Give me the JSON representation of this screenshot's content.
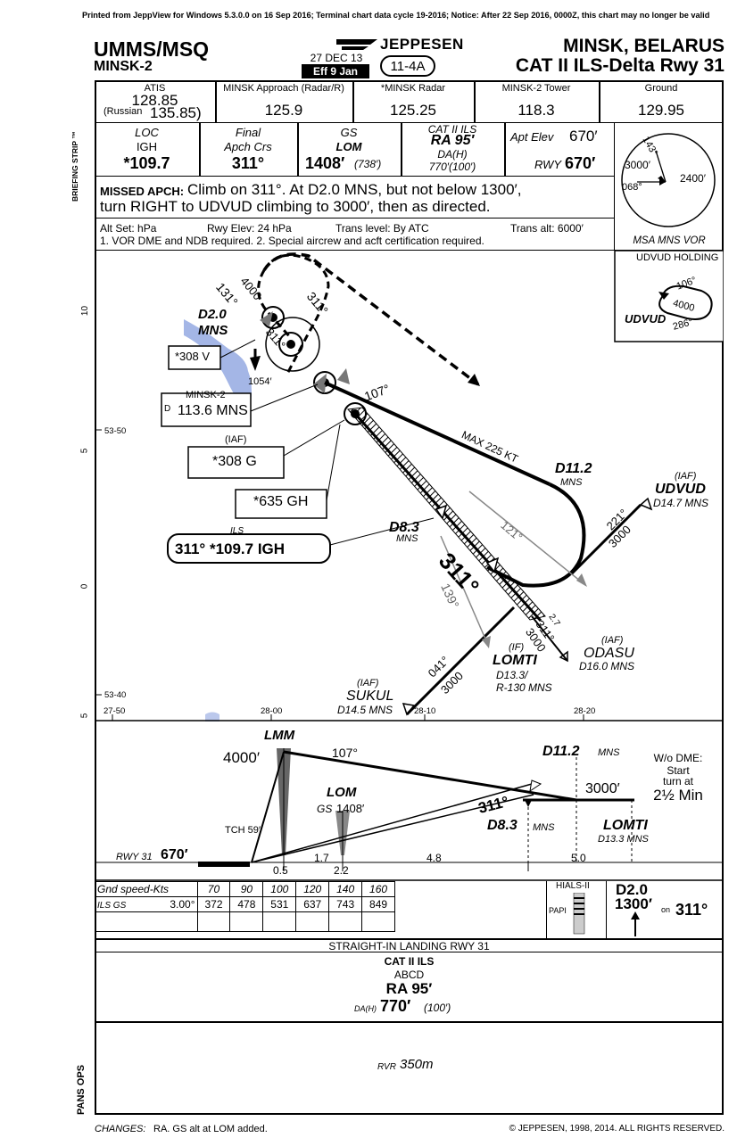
{
  "print_notice": "Printed from JeppView for Windows 5.3.0.0 on 16 Sep 2016; Terminal chart data cycle 19-2016; Notice: After 22 Sep 2016, 0000Z, this chart may no longer be valid",
  "header": {
    "icao_iata": "UMMS/MSQ",
    "airport_name": "MINSK-2",
    "date": "27 DEC 13",
    "eff": "Eff 9 Jan",
    "chart_index": "11-4A",
    "brand": "JEPPESEN",
    "city": "MINSK, BELARUS",
    "procedure": "CAT II ILS-Delta Rwy 31"
  },
  "briefing_strip_label": "BRIEFING STRIP ™",
  "comms": [
    {
      "label": "ATIS",
      "freq": "128.85",
      "sub_label": "(Russian",
      "sub_freq": "135.85)"
    },
    {
      "label": "MINSK Approach (Radar/R)",
      "freq": "125.9"
    },
    {
      "label": "*MINSK Radar",
      "freq": "125.25"
    },
    {
      "label": "MINSK-2 Tower",
      "freq": "118.3"
    },
    {
      "label": "Ground",
      "freq": "129.95"
    }
  ],
  "approach_info": {
    "loc_label": "LOC",
    "loc_id": "IGH",
    "loc_freq": "*109.7",
    "final_label": "Final",
    "apch_crs_label": "Apch Crs",
    "apch_crs": "311°",
    "gs_label": "GS",
    "gs_fix": "LOM",
    "gs_alt": "1408′",
    "gs_height": "(738′)",
    "cat_label": "CAT II ILS",
    "ra": "RA 95′",
    "da_label": "DA(H)",
    "da": "770′(100′)",
    "apt_elev_label": "Apt Elev",
    "apt_elev": "670′",
    "rwy_label": "RWY",
    "rwy_elev": "670′"
  },
  "missed_approach": {
    "label": "MISSED APCH:",
    "line1": "Climb on 311°. At D2.0 MNS, but not below 1300′,",
    "line2": "turn RIGHT to UDVUD climbing to 3000′, then as directed."
  },
  "settings": {
    "alt_set": "Alt Set: hPa",
    "rwy_elev": "Rwy Elev: 24 hPa",
    "trans_level": "Trans level: By ATC",
    "trans_alt": "Trans alt: 6000′",
    "note": "1. VOR DME and NDB required.  2. Special aircrew and acft certification required."
  },
  "msa": {
    "label": "MSA MNS VOR",
    "bearing_a": "143°",
    "bearing_b": "068°",
    "alt_west": "3000′",
    "alt_east": "2400′"
  },
  "holding": {
    "title": "UDVUD HOLDING",
    "inbound": "106°",
    "alt": "4000",
    "fix": "UDVUD",
    "outbound": "286°"
  },
  "plan_view": {
    "lat_ticks": [
      "53-50",
      "53-40"
    ],
    "lon_ticks": [
      "27-50",
      "28-00",
      "28-10",
      "28-20"
    ],
    "grid_numbers": [
      "10",
      "5",
      "0",
      "5"
    ],
    "fixes": {
      "d2_0": "D2.0",
      "d2_0_ref": "MNS",
      "d11_2": "D11.2",
      "d11_2_ref": "MNS",
      "d8_3": "D8.3",
      "d8_3_ref": "MNS",
      "udvud": "UDVUD",
      "udvud_iaf": "(IAF)",
      "udvud_dme": "D14.7 MNS",
      "odasu": "ODASU",
      "odasu_iaf": "(IAF)",
      "odasu_dme": "D16.0 MNS",
      "lomti": "LOMTI",
      "lomti_if": "(IF)",
      "lomti_dme": "D13.3/",
      "lomti_radial": "R-130 MNS",
      "sukul": "SUKUL",
      "sukul_iaf": "(IAF)",
      "sukul_dme": "D14.5 MNS"
    },
    "navaids": {
      "vor_box": "*308 V",
      "minsk2_label": "MINSK-2",
      "minsk2_freq": "113.6 MNS",
      "minsk2_d": "D",
      "iaf_label": "(IAF)",
      "ndb_g": "*308 G",
      "ndb_gh": "*635 GH",
      "ils_label": "ILS",
      "ils_box": "311° *109.7 IGH"
    },
    "labels": {
      "spot_elev": "1054′",
      "hold_alt": "4000",
      "hold_crs": "311°",
      "crs_131": "131°",
      "crs_107": "107°",
      "max_speed": "MAX 225 KT",
      "crs_121": "121°",
      "crs_221": "221°",
      "alt_221": "3000",
      "final_crs": "311°",
      "crs_139": "139°",
      "crs_041": "041°",
      "alt_041": "3000",
      "odasu_crs": "311°",
      "odasu_alt": "3000",
      "odasu_dist": "2.7",
      "hold_inbound_311": "311°"
    }
  },
  "profile": {
    "lmm": "LMM",
    "lmm_alt": "4000′",
    "crs_107": "107°",
    "d11_2": "D11.2",
    "d11_2_ref": "MNS",
    "wo_dme": "W/o DME:",
    "start": "Start",
    "turn_at": "turn at",
    "time": "2½ Min",
    "lom": "LOM",
    "gs_label": "GS",
    "gs_alt": "1408′",
    "tch": "TCH 59′",
    "crs": "311°",
    "d8_3": "D8.3",
    "d8_3_ref": "MNS",
    "alt_3000": "3000′",
    "lomti": "LOMTI",
    "lomti_dme": "D13.3 MNS",
    "rwy_label": "RWY 31",
    "rwy_elev": "670′",
    "dists": [
      "0.5",
      "1.7",
      "2.2",
      "4.8",
      "5.0"
    ]
  },
  "gs_table": {
    "header_label": "Gnd speed-Kts",
    "speeds": [
      "70",
      "90",
      "100",
      "120",
      "140",
      "160"
    ],
    "row_label": "ILS GS",
    "angle": "3.00°",
    "rates": [
      "372",
      "478",
      "531",
      "637",
      "743",
      "849"
    ]
  },
  "lights": {
    "hials": "HIALS-II",
    "papi": "PAPI"
  },
  "missed_icons": {
    "dist": "D2.0",
    "alt": "1300′",
    "on": "on",
    "crs": "311°"
  },
  "minimums": {
    "title": "STRAIGHT-IN LANDING RWY 31",
    "cat": "CAT II ILS",
    "acft": "ABCD",
    "ra": "RA 95′",
    "da_label": "DA(H)",
    "da_value": "770′",
    "da_height": "(100′)",
    "rvr_label": "RVR",
    "rvr_value": "350m"
  },
  "pans_ops": "PANS OPS",
  "footer": {
    "changes_label": "CHANGES:",
    "changes": "RA. GS alt at LOM added.",
    "copyright": "© JEPPESEN, 1998, 2014. ALL RIGHTS RESERVED."
  }
}
